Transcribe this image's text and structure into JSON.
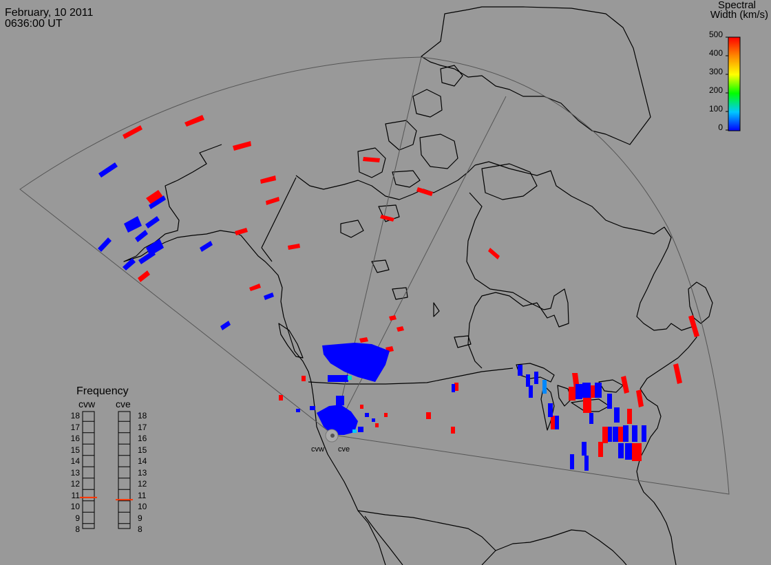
{
  "header": {
    "date": "February, 10 2011",
    "time": "0636:00 UT"
  },
  "colorbar": {
    "title_line1": "Spectral",
    "title_line2": "Width (km/s)",
    "ticks": [
      "500",
      "400",
      "300",
      "200",
      "100",
      "0"
    ],
    "min": 0,
    "max": 500
  },
  "frequency_panel": {
    "title": "Frequency",
    "radars": [
      {
        "name": "cvw",
        "frequency": 10.8
      },
      {
        "name": "cve",
        "frequency": 10.6
      }
    ],
    "scale": [
      "18",
      "17",
      "16",
      "15",
      "14",
      "13",
      "12",
      "11",
      "10",
      "9",
      "8"
    ]
  },
  "radar_labels": [
    "cvw",
    "cve"
  ],
  "colors": {
    "background": "#999999",
    "low": "#0000ff",
    "high": "#ff0000"
  }
}
